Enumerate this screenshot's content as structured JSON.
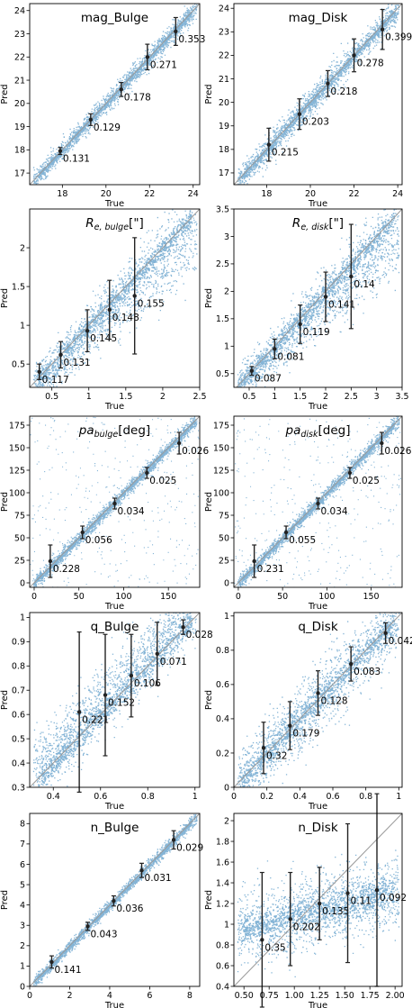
{
  "figure": {
    "ylabel": "Pred",
    "xlabel": "True",
    "colors": {
      "scatter": "#1f77b4",
      "identity_line": "#9a9a9a",
      "errorbar": "#222222",
      "frame": "#000000"
    }
  },
  "chart_data": [
    {
      "type": "scatter",
      "title": "mag_Bulge",
      "xlabel": "True",
      "ylabel": "Pred",
      "xlim": [
        16.5,
        24.3
      ],
      "ylim": [
        16.5,
        24.3
      ],
      "xticks": [
        18,
        20,
        22,
        24
      ],
      "yticks": [
        17,
        18,
        19,
        20,
        21,
        22,
        23,
        24
      ],
      "scatter_spread": 0.22,
      "scatter_skew": "none",
      "grid": false,
      "legend": "none",
      "series": [
        {
          "x": [
            17.9,
            19.3,
            20.7,
            21.9,
            23.2
          ],
          "y": [
            17.95,
            19.3,
            20.6,
            22.0,
            23.1
          ],
          "yerr": [
            0.15,
            0.25,
            0.3,
            0.55,
            0.6
          ],
          "labels": [
            "0.131",
            "0.129",
            "0.178",
            "0.271",
            "0.353"
          ]
        }
      ]
    },
    {
      "type": "scatter",
      "title": "mag_Disk",
      "xlabel": "True",
      "ylabel": "Pred",
      "xlim": [
        16.5,
        24.2
      ],
      "ylim": [
        16.5,
        24.2
      ],
      "xticks": [
        18,
        20,
        22,
        24
      ],
      "yticks": [
        17,
        18,
        19,
        20,
        21,
        22,
        23,
        24
      ],
      "scatter_spread": 0.3,
      "scatter_skew": "none",
      "grid": false,
      "legend": "none",
      "series": [
        {
          "x": [
            18.1,
            19.5,
            20.8,
            22.0,
            23.3
          ],
          "y": [
            18.2,
            19.5,
            20.8,
            22.0,
            23.1
          ],
          "yerr": [
            0.7,
            0.65,
            0.55,
            0.7,
            0.85
          ],
          "labels": [
            "0.215",
            "0.203",
            "0.218",
            "0.278",
            "0.399"
          ]
        }
      ]
    },
    {
      "type": "scatter",
      "title": "R_e,bulge[\"]",
      "title_parts": [
        "R",
        "e, bulge",
        "[\"]"
      ],
      "xlabel": "True",
      "ylabel": "Pred",
      "xlim": [
        0.2,
        2.5
      ],
      "ylim": [
        0.2,
        2.5
      ],
      "xticks": [
        0.5,
        1.0,
        1.5,
        2.0,
        2.5
      ],
      "yticks": [
        0.5,
        1.0,
        1.5,
        2.0
      ],
      "scatter_spread": 0.18,
      "scatter_skew": "under",
      "grid": false,
      "legend": "none",
      "series": [
        {
          "x": [
            0.33,
            0.62,
            0.98,
            1.28,
            1.62
          ],
          "y": [
            0.4,
            0.62,
            0.93,
            1.2,
            1.38
          ],
          "yerr": [
            0.1,
            0.17,
            0.27,
            0.38,
            0.75
          ],
          "labels": [
            "0.117",
            "0.131",
            "0.145",
            "0.148",
            "0.155"
          ]
        }
      ]
    },
    {
      "type": "scatter",
      "title": "R_e,disk[\"]",
      "title_parts": [
        "R",
        "e, disk",
        "[\"]"
      ],
      "xlabel": "True",
      "ylabel": "Pred",
      "xlim": [
        0.2,
        3.5
      ],
      "ylim": [
        0.25,
        3.5
      ],
      "xticks": [
        0.5,
        1.0,
        1.5,
        2.0,
        2.5,
        3.0,
        3.5
      ],
      "yticks": [
        0.5,
        1.0,
        1.5,
        2.0,
        2.5,
        3.0,
        3.5
      ],
      "scatter_spread": 0.25,
      "scatter_skew": "under",
      "grid": false,
      "legend": "none",
      "series": [
        {
          "x": [
            0.55,
            1.0,
            1.5,
            2.0,
            2.5
          ],
          "y": [
            0.55,
            0.95,
            1.4,
            1.9,
            2.27
          ],
          "yerr": [
            0.08,
            0.18,
            0.35,
            0.45,
            0.95
          ],
          "labels": [
            "0.087",
            "0.081",
            "0.119",
            "0.141",
            "0.14"
          ]
        }
      ]
    },
    {
      "type": "scatter",
      "title": "pa_bulge[deg]",
      "title_parts": [
        "pa",
        "bulge",
        "[deg]"
      ],
      "xlabel": "True",
      "ylabel": "Pred",
      "xlim": [
        -5,
        185
      ],
      "ylim": [
        -5,
        185
      ],
      "xticks": [
        0,
        50,
        100,
        150
      ],
      "yticks": [
        0,
        25,
        50,
        75,
        100,
        125,
        150,
        175
      ],
      "scatter_spread": 4,
      "scatter_skew": "none",
      "scatter_outliers": true,
      "grid": false,
      "legend": "none",
      "series": [
        {
          "x": [
            18,
            54,
            90,
            126,
            162
          ],
          "y": [
            24,
            56,
            88,
            122,
            155
          ],
          "yerr": [
            18,
            7,
            6,
            6,
            12
          ],
          "labels": [
            "0.228",
            "0.056",
            "0.034",
            "0.025",
            "0.026"
          ]
        }
      ]
    },
    {
      "type": "scatter",
      "title": "pa_disk[deg]",
      "title_parts": [
        "pa",
        "disk",
        "[deg]"
      ],
      "xlabel": "True",
      "ylabel": "Pred",
      "xlim": [
        -5,
        185
      ],
      "ylim": [
        -5,
        185
      ],
      "xticks": [
        0,
        50,
        100,
        150
      ],
      "yticks": [
        0,
        25,
        50,
        75,
        100,
        125,
        150,
        175
      ],
      "scatter_spread": 4,
      "scatter_skew": "none",
      "scatter_outliers": true,
      "grid": false,
      "legend": "none",
      "series": [
        {
          "x": [
            18,
            54,
            90,
            126,
            162
          ],
          "y": [
            24,
            56,
            88,
            122,
            155
          ],
          "yerr": [
            18,
            7,
            6,
            6,
            12
          ],
          "labels": [
            "0.231",
            "0.055",
            "0.034",
            "0.025",
            "0.026"
          ]
        }
      ]
    },
    {
      "type": "scatter",
      "title": "q_Bulge",
      "xlabel": "True",
      "ylabel": "Pred",
      "xlim": [
        0.3,
        1.02
      ],
      "ylim": [
        0.3,
        1.02
      ],
      "xticks": [
        0.4,
        0.6,
        0.8,
        1.0
      ],
      "yticks": [
        0.3,
        0.4,
        0.5,
        0.6,
        0.7,
        0.8,
        0.9,
        1.0
      ],
      "scatter_spread": 0.07,
      "scatter_skew": "over",
      "grid": false,
      "legend": "none",
      "series": [
        {
          "x": [
            0.51,
            0.62,
            0.73,
            0.84,
            0.95
          ],
          "y": [
            0.61,
            0.68,
            0.76,
            0.85,
            0.96
          ],
          "yerr": [
            0.33,
            0.25,
            0.17,
            0.13,
            0.03
          ],
          "labels": [
            "0.221",
            "0.152",
            "0.106",
            "0.071",
            "0.028"
          ]
        }
      ]
    },
    {
      "type": "scatter",
      "title": "q_Disk",
      "xlabel": "True",
      "ylabel": "Pred",
      "xlim": [
        0.0,
        1.02
      ],
      "ylim": [
        0.0,
        1.02
      ],
      "xticks": [
        0.0,
        0.2,
        0.4,
        0.6,
        0.8,
        1.0
      ],
      "yticks": [
        0.0,
        0.2,
        0.4,
        0.6,
        0.8,
        1.0
      ],
      "scatter_spread": 0.1,
      "scatter_skew": "none",
      "grid": false,
      "legend": "none",
      "series": [
        {
          "x": [
            0.18,
            0.34,
            0.51,
            0.71,
            0.92
          ],
          "y": [
            0.23,
            0.36,
            0.55,
            0.72,
            0.9
          ],
          "yerr": [
            0.15,
            0.14,
            0.13,
            0.1,
            0.06
          ],
          "labels": [
            "0.32",
            "0.179",
            "0.128",
            "0.083",
            "0.042"
          ]
        }
      ]
    },
    {
      "type": "scatter",
      "title": "n_Bulge",
      "xlabel": "True",
      "ylabel": "Pred",
      "xlim": [
        0,
        8.5
      ],
      "ylim": [
        0,
        8.5
      ],
      "xticks": [
        0,
        2,
        4,
        6,
        8
      ],
      "yticks": [
        0,
        1,
        2,
        3,
        4,
        5,
        6,
        7,
        8
      ],
      "scatter_spread": 0.15,
      "scatter_skew": "none",
      "grid": false,
      "legend": "none",
      "series": [
        {
          "x": [
            1.1,
            2.9,
            4.2,
            5.6,
            7.2
          ],
          "y": [
            1.2,
            2.95,
            4.2,
            5.7,
            7.2
          ],
          "yerr": [
            0.3,
            0.2,
            0.25,
            0.35,
            0.45
          ],
          "labels": [
            "0.141",
            "0.043",
            "0.036",
            "0.031",
            "0.029"
          ]
        }
      ]
    },
    {
      "type": "scatter",
      "title": "n_Disk",
      "xlabel": "True",
      "ylabel": "Pred",
      "xlim": [
        0.4,
        2.07
      ],
      "ylim": [
        0.4,
        2.07
      ],
      "xticks": [
        0.5,
        0.75,
        1.0,
        1.25,
        1.5,
        1.75,
        2.0
      ],
      "xtick_labels": [
        "0.50",
        "0.75",
        "1.00",
        "1.25",
        "1.50",
        "1.75",
        "2.00"
      ],
      "yticks": [
        0.4,
        0.6,
        0.8,
        1.0,
        1.2,
        1.4,
        1.6,
        1.8,
        2.0
      ],
      "scatter_spread": 0.17,
      "scatter_skew": "flat",
      "grid": false,
      "legend": "none",
      "series": [
        {
          "x": [
            0.68,
            0.96,
            1.25,
            1.53,
            1.82
          ],
          "y": [
            0.85,
            1.05,
            1.2,
            1.3,
            1.33
          ],
          "yerr": [
            0.65,
            0.45,
            0.35,
            0.67,
            0.93
          ],
          "labels": [
            "0.35",
            "0.202",
            "0.135",
            "0.11",
            "0.092"
          ]
        }
      ]
    }
  ]
}
